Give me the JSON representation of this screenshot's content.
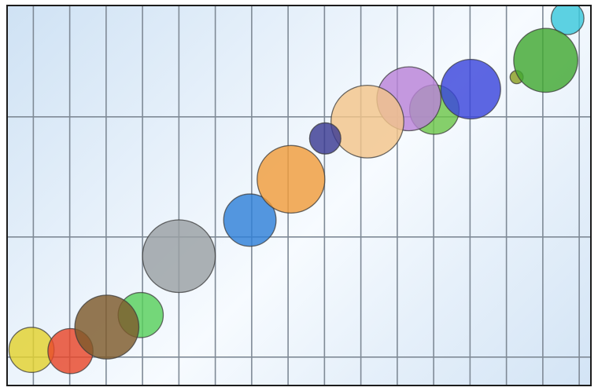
{
  "chart_data": {
    "type": "bubble",
    "title": "",
    "xlabel": "",
    "ylabel": "",
    "xlim": [
      0,
      16
    ],
    "ylim": [
      0,
      3.15
    ],
    "grid": true,
    "x_gridlines": [
      0.7,
      1.7,
      2.7,
      3.7,
      4.7,
      5.7,
      6.7,
      7.7,
      8.7,
      9.7,
      10.7,
      11.7,
      12.7,
      13.7,
      14.7,
      15.7
    ],
    "y_gridlines": [
      0.23,
      1.23,
      2.23
    ],
    "bubbles": [
      {
        "x": 0.65,
        "y": 0.29,
        "r": 0.62,
        "color": "#e3d22e"
      },
      {
        "x": 1.72,
        "y": 0.28,
        "r": 0.62,
        "color": "#e8472a"
      },
      {
        "x": 3.65,
        "y": 0.58,
        "r": 0.62,
        "color": "#58cf5b"
      },
      {
        "x": 2.72,
        "y": 0.48,
        "r": 0.88,
        "color": "#7e5a2b"
      },
      {
        "x": 4.7,
        "y": 1.07,
        "r": 1.0,
        "color": "#9aa0a4"
      },
      {
        "x": 6.65,
        "y": 1.37,
        "r": 0.72,
        "color": "#2f80d8"
      },
      {
        "x": 7.78,
        "y": 1.71,
        "r": 0.93,
        "color": "#f09c3c"
      },
      {
        "x": 11.72,
        "y": 2.29,
        "r": 0.68,
        "color": "#6cc64a"
      },
      {
        "x": 11.02,
        "y": 2.38,
        "r": 0.88,
        "color": "#b982d8"
      },
      {
        "x": 12.72,
        "y": 2.46,
        "r": 0.82,
        "color": "#3b46dc"
      },
      {
        "x": 9.88,
        "y": 2.19,
        "r": 1.0,
        "color": "#f3c58a"
      },
      {
        "x": 8.72,
        "y": 2.05,
        "r": 0.43,
        "color": "#3a3b92"
      },
      {
        "x": 13.98,
        "y": 2.56,
        "r": 0.18,
        "color": "#8a9e22"
      },
      {
        "x": 15.38,
        "y": 3.05,
        "r": 0.45,
        "color": "#3ac8dc"
      },
      {
        "x": 14.78,
        "y": 2.7,
        "r": 0.88,
        "color": "#42a832"
      }
    ]
  }
}
